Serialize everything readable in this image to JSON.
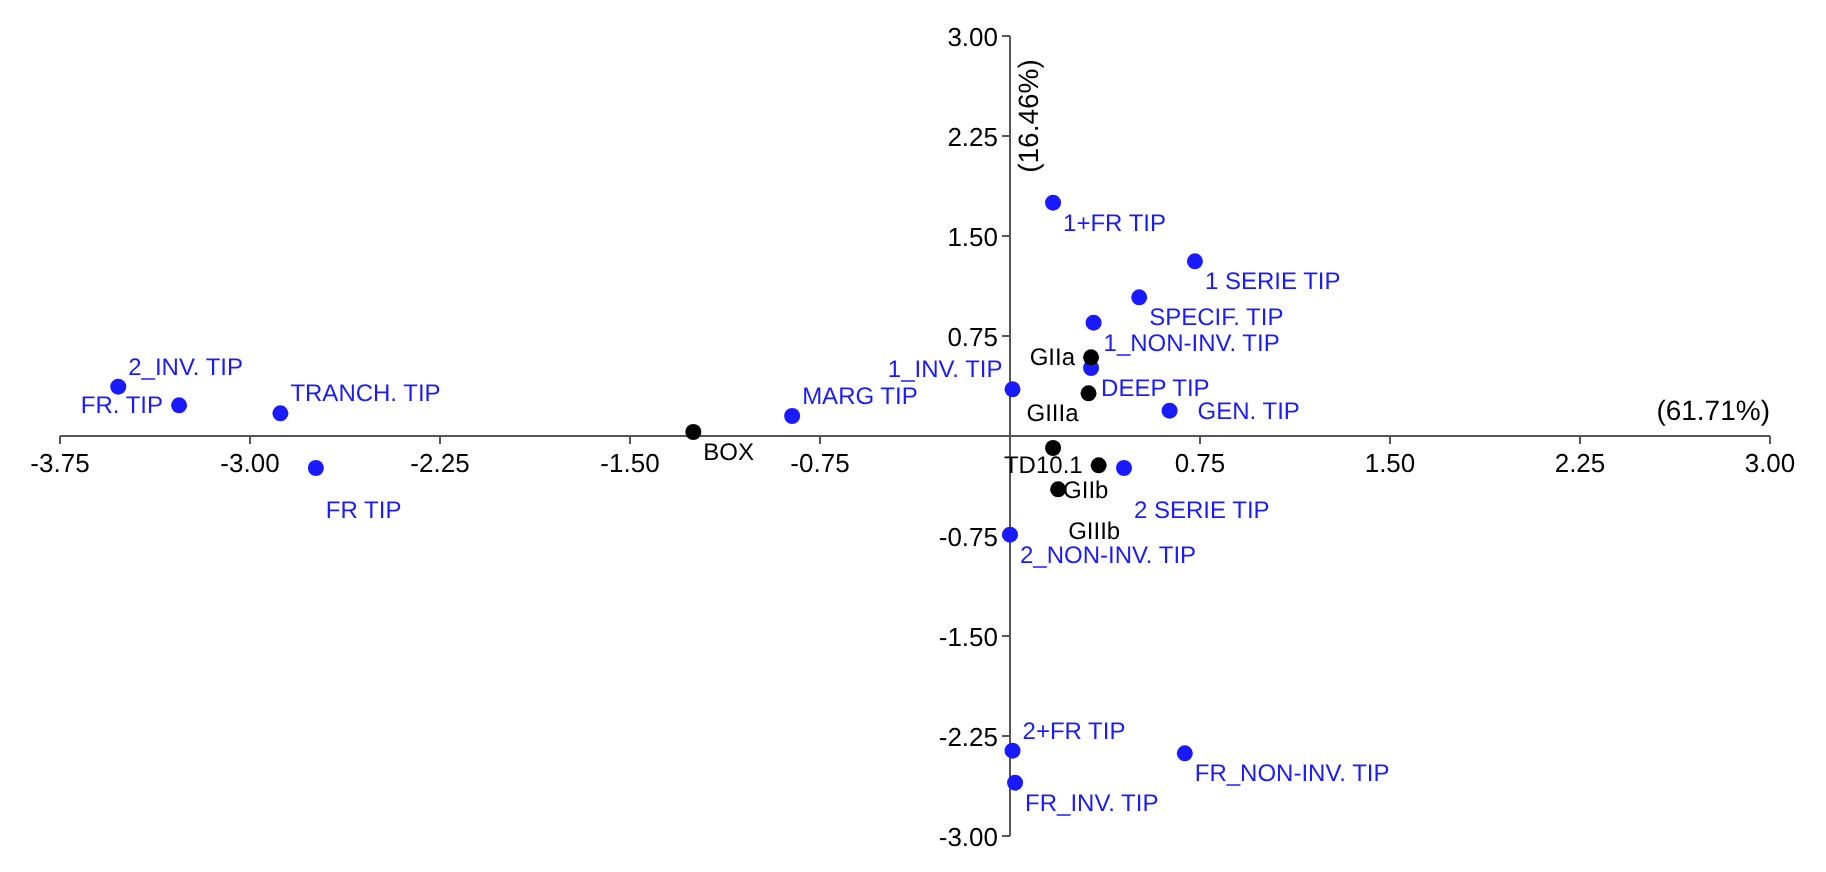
{
  "chart_data": {
    "type": "scatter",
    "xlabel": "(61.71%)",
    "ylabel": "(16.46%)",
    "xlim": [
      -3.75,
      3.0
    ],
    "ylim": [
      -3.0,
      3.0
    ],
    "xticks": [
      {
        "value": -3.75,
        "label": "-3.75"
      },
      {
        "value": -3,
        "label": "-3.00"
      },
      {
        "value": -2.25,
        "label": "-2.25"
      },
      {
        "value": -1.5,
        "label": "-1.50"
      },
      {
        "value": -0.75,
        "label": "-0.75"
      },
      {
        "value": 0.75,
        "label": "0.75"
      },
      {
        "value": 1.5,
        "label": "1.50"
      },
      {
        "value": 2.25,
        "label": "2.25"
      },
      {
        "value": 3,
        "label": "3.00"
      }
    ],
    "yticks": [
      {
        "value": -3,
        "label": "-3.00"
      },
      {
        "value": -2.25,
        "label": "-2.25"
      },
      {
        "value": -1.5,
        "label": "-1.50"
      },
      {
        "value": -0.75,
        "label": "-0.75"
      },
      {
        "value": 0.75,
        "label": "0.75"
      },
      {
        "value": 1.5,
        "label": "1.50"
      },
      {
        "value": 2.25,
        "label": "2.25"
      },
      {
        "value": 3,
        "label": "3.00"
      }
    ],
    "grid": false,
    "marker": "circle",
    "series": [
      {
        "color": "#1a1aff",
        "x": [
          -3.52,
          -3.28,
          -2.88,
          -2.74,
          -0.86,
          0.01,
          0.17,
          0.73,
          0.51,
          0.33,
          0.32,
          0.63,
          0.45,
          0.0,
          0.01,
          0.69,
          0.02
        ],
        "values": [
          0.37,
          0.23,
          0.17,
          -0.24,
          0.15,
          0.35,
          1.75,
          1.31,
          1.04,
          0.85,
          0.51,
          0.19,
          -0.24,
          -0.74,
          -2.36,
          -2.38,
          -2.6
        ]
      },
      {
        "color": "#000000",
        "x": [
          -1.25,
          0.32,
          0.31,
          0.17,
          0.35,
          0.19
        ],
        "values": [
          0.03,
          0.59,
          0.32,
          -0.09,
          -0.22,
          -0.4
        ]
      }
    ],
    "annotations": [
      {
        "text": "2_INV. TIP",
        "x": -3.52,
        "y": 0.37
      },
      {
        "text": "FR. TIP",
        "x": -3.28,
        "y": 0.23
      },
      {
        "text": "TRANCH. TIP",
        "x": -2.88,
        "y": 0.17
      },
      {
        "text": "FR TIP",
        "x": -2.74,
        "y": -0.24
      },
      {
        "text": "MARG TIP",
        "x": -0.86,
        "y": 0.15
      },
      {
        "text": "1_INV. TIP",
        "x": 0.01,
        "y": 0.35
      },
      {
        "text": "1+FR TIP",
        "x": 0.17,
        "y": 1.75
      },
      {
        "text": "1 SERIE TIP",
        "x": 0.73,
        "y": 1.31
      },
      {
        "text": "SPECIF. TIP",
        "x": 0.51,
        "y": 1.04
      },
      {
        "text": "1_NON-INV. TIP",
        "x": 0.33,
        "y": 0.85
      },
      {
        "text": "DEEP TIP",
        "x": 0.32,
        "y": 0.51
      },
      {
        "text": "GEN. TIP",
        "x": 0.63,
        "y": 0.19
      },
      {
        "text": "2 SERIE TIP",
        "x": 0.45,
        "y": -0.24
      },
      {
        "text": "2_NON-INV. TIP",
        "x": 0.0,
        "y": -0.74
      },
      {
        "text": "2+FR TIP",
        "x": 0.01,
        "y": -2.36
      },
      {
        "text": "FR_NON-INV. TIP",
        "x": 0.69,
        "y": -2.38
      },
      {
        "text": "FR_INV. TIP",
        "x": 0.02,
        "y": -2.6
      },
      {
        "text": "BOX",
        "x": -1.25,
        "y": 0.03
      },
      {
        "text": "GIIa",
        "x": 0.32,
        "y": 0.59
      },
      {
        "text": "GIIIa",
        "x": 0.31,
        "y": 0.32
      },
      {
        "text": "GIIb",
        "x": 0.17,
        "y": -0.09
      },
      {
        "text": "TD10.1",
        "x": 0.35,
        "y": -0.22
      },
      {
        "text": "GIIIb",
        "x": 0.19,
        "y": -0.4
      }
    ]
  }
}
